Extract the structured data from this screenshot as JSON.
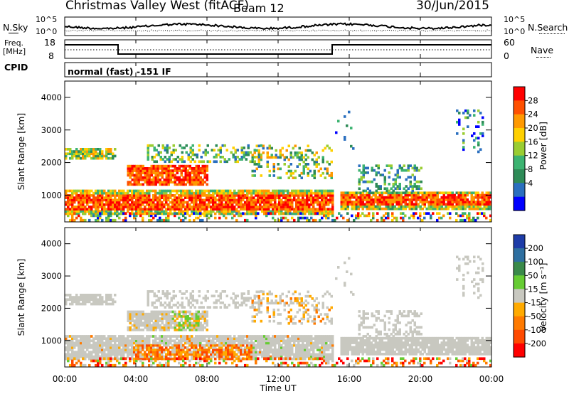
{
  "header": {
    "station": "Christmas Valley West (fitACF)",
    "beam": "Beam 12",
    "date": "30/Jun/2015"
  },
  "top_panels": {
    "nsky_label": "N.Sky",
    "nsky_ticks": [
      "10^5",
      "10^0"
    ],
    "nsearch_label": "N.Search",
    "nsearch_ticks": [
      "10^5",
      "10^0"
    ],
    "freq_label_1": "Freq.",
    "freq_label_2": "[MHz]",
    "freq_ticks": [
      "18",
      "8"
    ],
    "nave_label": "Nave",
    "nave_ticks": [
      "60",
      "0"
    ],
    "cpid_label": "CPID",
    "cpid_value": "normal (fast) -151 IF"
  },
  "chart_data": [
    {
      "type": "heatmap",
      "panel": "power",
      "ylabel": "Slant Range [km]",
      "y_ticks": [
        "1000",
        "2000",
        "3000",
        "4000"
      ],
      "ylim": [
        180,
        4500
      ],
      "colorbar_label": "Power [dB]",
      "colorbar_ticks": [
        "28",
        "24",
        "20",
        "16",
        "12",
        "8",
        "4"
      ],
      "colorbar_colors": [
        "#ff0000",
        "#ff5000",
        "#ff9900",
        "#ffd000",
        "#9acd32",
        "#3cb371",
        "#2e8b57",
        "#2a6fbf",
        "#0000ff"
      ],
      "echo_bands_km": [
        {
          "t_start": 0.0,
          "t_end": 2.8,
          "r_low": 2100,
          "r_high": 2450
        },
        {
          "t_start": 0.0,
          "t_end": 15.0,
          "r_low": 400,
          "r_high": 1150
        },
        {
          "t_start": 3.5,
          "t_end": 8.0,
          "r_low": 1300,
          "r_high": 1900
        },
        {
          "t_start": 15.5,
          "t_end": 24.0,
          "r_low": 550,
          "r_high": 1100
        }
      ]
    },
    {
      "type": "heatmap",
      "panel": "velocity",
      "ylabel": "Slant Range [km]",
      "y_ticks": [
        "1000",
        "2000",
        "3000",
        "4000"
      ],
      "ylim": [
        180,
        4500
      ],
      "colorbar_label": "Velocity [m s⁻¹]",
      "colorbar_ticks": [
        "200",
        "100",
        "50",
        "15",
        "-15",
        "-50",
        "-100",
        "-200"
      ],
      "colorbar_colors": [
        "#1e3ca8",
        "#2e6fa0",
        "#3a8a4a",
        "#66cc33",
        "#c8c8c0",
        "#ffaa00",
        "#ff7a00",
        "#ff4a00",
        "#ff0000"
      ]
    }
  ],
  "x_axis": {
    "label": "Time UT",
    "ticks": [
      "00:00",
      "04:00",
      "08:00",
      "12:00",
      "16:00",
      "20:00",
      "00:00"
    ]
  }
}
